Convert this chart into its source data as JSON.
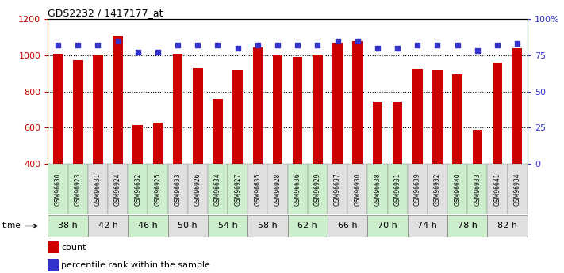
{
  "title": "GDS2232 / 1417177_at",
  "samples": [
    "GSM96630",
    "GSM96923",
    "GSM96631",
    "GSM96924",
    "GSM96632",
    "GSM96925",
    "GSM96633",
    "GSM96926",
    "GSM96634",
    "GSM96927",
    "GSM96635",
    "GSM96928",
    "GSM96636",
    "GSM96929",
    "GSM96637",
    "GSM96930",
    "GSM96638",
    "GSM96931",
    "GSM96639",
    "GSM96932",
    "GSM96640",
    "GSM96933",
    "GSM96641",
    "GSM96934"
  ],
  "counts": [
    1010,
    975,
    1005,
    1110,
    615,
    628,
    1010,
    930,
    760,
    920,
    1045,
    1000,
    990,
    1005,
    1070,
    1080,
    740,
    740,
    925,
    920,
    895,
    590,
    960,
    1040
  ],
  "percentiles": [
    82,
    82,
    82,
    85,
    77,
    77,
    82,
    82,
    82,
    80,
    82,
    82,
    82,
    82,
    85,
    85,
    80,
    80,
    82,
    82,
    82,
    78,
    82,
    83
  ],
  "time_labels": [
    "38 h",
    "42 h",
    "46 h",
    "50 h",
    "54 h",
    "58 h",
    "62 h",
    "66 h",
    "70 h",
    "74 h",
    "78 h",
    "82 h"
  ],
  "time_boundaries": [
    0,
    2,
    4,
    6,
    8,
    10,
    12,
    14,
    16,
    18,
    20,
    22,
    24
  ],
  "bar_color": "#CC0000",
  "dot_color": "#3333CC",
  "bar_bottom": 400,
  "ylim_left": [
    400,
    1200
  ],
  "ylim_right": [
    0,
    100
  ],
  "yticks_left": [
    400,
    600,
    800,
    1000,
    1200
  ],
  "yticks_right": [
    0,
    25,
    50,
    75,
    100
  ],
  "ytick_labels_right": [
    "0",
    "25",
    "50",
    "75",
    "100%"
  ],
  "grid_values": [
    600,
    800,
    1000
  ],
  "legend_count_label": "count",
  "legend_pct_label": "percentile rank within the sample",
  "time_bg_odd": "#cceecc",
  "time_bg_even": "#e0e0e0",
  "sample_bg": "#e0e0e0"
}
